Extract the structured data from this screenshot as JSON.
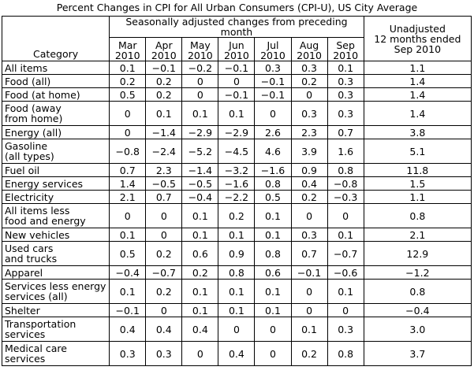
{
  "title": "Percent Changes in CPI for All Urban Consumers (CPI-U), US City Average",
  "header": {
    "category": "Category",
    "seasonal_group": "Seasonally adjusted changes from preceding month",
    "months": [
      {
        "line1": "Mar",
        "line2": "2010"
      },
      {
        "line1": "Apr",
        "line2": "2010"
      },
      {
        "line1": "May",
        "line2": "2010"
      },
      {
        "line1": "Jun",
        "line2": "2010"
      },
      {
        "line1": "Jul",
        "line2": "2010"
      },
      {
        "line1": "Aug",
        "line2": "2010"
      },
      {
        "line1": "Sep",
        "line2": "2010"
      }
    ],
    "unadjusted": {
      "line1": "Unadjusted",
      "line2": "12 months ended",
      "line3": "Sep 2010"
    }
  },
  "rows": [
    {
      "category": [
        "All items"
      ],
      "values": [
        "0.1",
        "−0.1",
        "−0.2",
        "−0.1",
        "0.3",
        "0.3",
        "0.1"
      ],
      "unadjusted": "1.1"
    },
    {
      "category": [
        "Food (all)"
      ],
      "values": [
        "0.2",
        "0.2",
        "0",
        "0",
        "−0.1",
        "0.2",
        "0.3"
      ],
      "unadjusted": "1.4"
    },
    {
      "category": [
        "Food (at home)"
      ],
      "values": [
        "0.5",
        "0.2",
        "0",
        "−0.1",
        "−0.1",
        "0",
        "0.3"
      ],
      "unadjusted": "1.4"
    },
    {
      "category": [
        "Food (away",
        "from home)"
      ],
      "values": [
        "0",
        "0.1",
        "0.1",
        "0.1",
        "0",
        "0.3",
        "0.3"
      ],
      "unadjusted": "1.4"
    },
    {
      "category": [
        "Energy (all)"
      ],
      "values": [
        "0",
        "−1.4",
        "−2.9",
        "−2.9",
        "2.6",
        "2.3",
        "0.7"
      ],
      "unadjusted": "3.8"
    },
    {
      "category": [
        "Gasoline",
        "(all types)"
      ],
      "values": [
        "−0.8",
        "−2.4",
        "−5.2",
        "−4.5",
        "4.6",
        "3.9",
        "1.6"
      ],
      "unadjusted": "5.1"
    },
    {
      "category": [
        "Fuel oil"
      ],
      "values": [
        "0.7",
        "2.3",
        "−1.4",
        "−3.2",
        "−1.6",
        "0.9",
        "0.8"
      ],
      "unadjusted": "11.8"
    },
    {
      "category": [
        "Energy services"
      ],
      "values": [
        "1.4",
        "−0.5",
        "−0.5",
        "−1.6",
        "0.8",
        "0.4",
        "−0.8"
      ],
      "unadjusted": "1.5"
    },
    {
      "category": [
        "Electricity"
      ],
      "values": [
        "2.1",
        "0.7",
        "−0.4",
        "−2.2",
        "0.5",
        "0.2",
        "−0.3"
      ],
      "unadjusted": "1.1"
    },
    {
      "category": [
        "All items less",
        "food and energy"
      ],
      "values": [
        "0",
        "0",
        "0.1",
        "0.2",
        "0.1",
        "0",
        "0"
      ],
      "unadjusted": "0.8"
    },
    {
      "category": [
        "New vehicles"
      ],
      "values": [
        "0.1",
        "0",
        "0.1",
        "0.1",
        "0.1",
        "0.3",
        "0.1"
      ],
      "unadjusted": "2.1"
    },
    {
      "category": [
        "Used cars",
        "and trucks"
      ],
      "values": [
        "0.5",
        "0.2",
        "0.6",
        "0.9",
        "0.8",
        "0.7",
        "−0.7"
      ],
      "unadjusted": "12.9"
    },
    {
      "category": [
        "Apparel"
      ],
      "values": [
        "−0.4",
        "−0.7",
        "0.2",
        "0.8",
        "0.6",
        "−0.1",
        "−0.6"
      ],
      "unadjusted": "−1.2"
    },
    {
      "category": [
        "Services less energy",
        "services (all)"
      ],
      "values": [
        "0.1",
        "0.2",
        "0.1",
        "0.1",
        "0.1",
        "0",
        "0.1"
      ],
      "unadjusted": "0.8"
    },
    {
      "category": [
        "Shelter"
      ],
      "values": [
        "−0.1",
        "0",
        "0.1",
        "0.1",
        "0.1",
        "0",
        "0"
      ],
      "unadjusted": "−0.4"
    },
    {
      "category": [
        "Transportation",
        "services"
      ],
      "values": [
        "0.4",
        "0.4",
        "0.4",
        "0",
        "0",
        "0.1",
        "0.3"
      ],
      "unadjusted": "3.0"
    },
    {
      "category": [
        "Medical care",
        "services"
      ],
      "values": [
        "0.3",
        "0.3",
        "0",
        "0.4",
        "0",
        "0.2",
        "0.8"
      ],
      "unadjusted": "3.7"
    }
  ]
}
